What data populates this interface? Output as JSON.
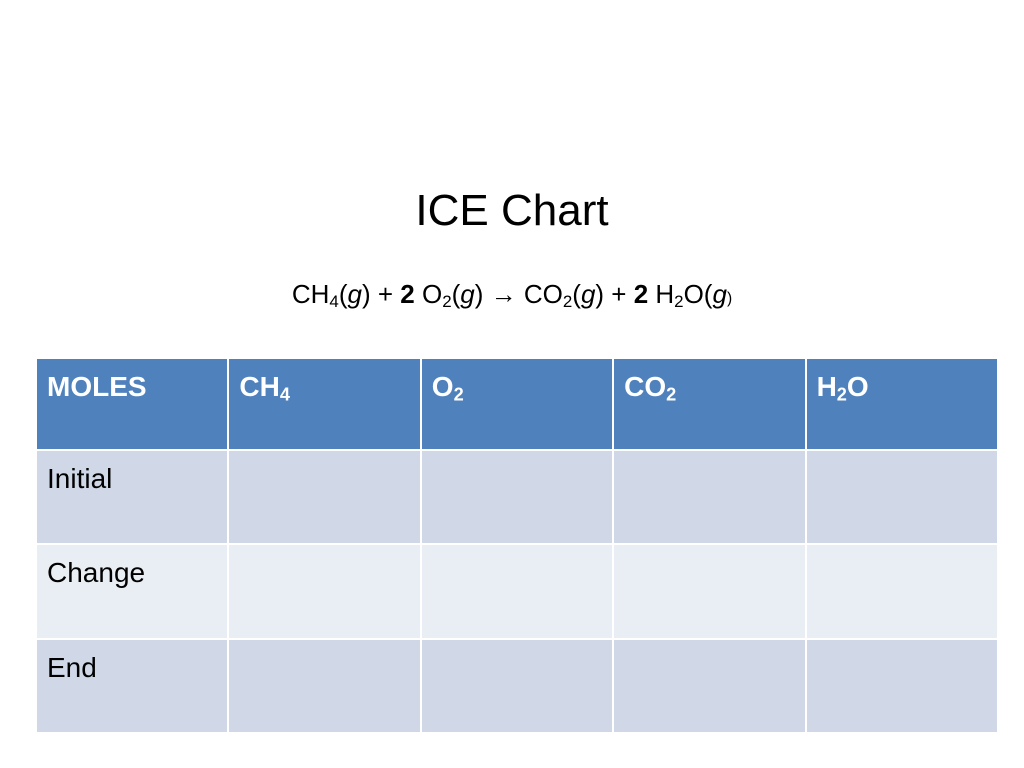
{
  "slide": {
    "title": "ICE Chart",
    "equation": [
      "CH",
      "4",
      "(",
      "g",
      ") + ",
      "2",
      " O",
      "2",
      "(",
      "g",
      ") ",
      "→",
      " CO",
      "2",
      "(",
      "g",
      ") + ",
      "2",
      " H",
      "2",
      "O(",
      "g",
      ")"
    ]
  },
  "table": {
    "header": [
      [
        "MOLES"
      ],
      [
        "CH",
        "4"
      ],
      [
        "O",
        "2"
      ],
      [
        "CO",
        "2"
      ],
      [
        "H",
        "2",
        "O"
      ]
    ],
    "rows": [
      "Initial",
      "Change",
      "End"
    ]
  }
}
